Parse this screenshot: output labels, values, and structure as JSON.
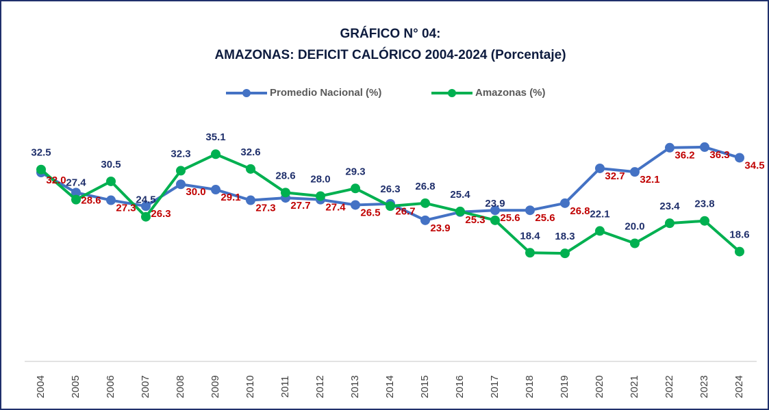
{
  "chart_data": {
    "type": "line",
    "title": "GRÁFICO N° 04:",
    "subtitle": "AMAZONAS: DEFICIT CALÓRICO 2004-2024 (Porcentaje)",
    "categories": [
      "2004",
      "2005",
      "2006",
      "2007",
      "2008",
      "2009",
      "2010",
      "2011",
      "2012",
      "2013",
      "2014",
      "2015",
      "2016",
      "2017",
      "2018",
      "2019",
      "2020",
      "2021",
      "2022",
      "2023",
      "2024"
    ],
    "series": [
      {
        "name": "Promedio Nacional (%)",
        "color": "#4472c4",
        "label_color": "#c00000",
        "values": [
          32.0,
          28.6,
          27.3,
          26.3,
          30.0,
          29.1,
          27.3,
          27.7,
          27.4,
          26.5,
          26.7,
          23.9,
          25.3,
          25.6,
          25.6,
          26.8,
          32.7,
          32.1,
          36.2,
          36.3,
          34.5
        ],
        "value_labels": [
          "32.0",
          "28.6",
          "27.3",
          "26.3",
          "30.0",
          "29.1",
          "27.3",
          "27.7",
          "27.4",
          "26.5",
          "26.7",
          "23.9",
          "25.3",
          "25.6",
          "25.6",
          "26.8",
          "32.7",
          "32.1",
          "36.2",
          "36.3",
          "34.5"
        ]
      },
      {
        "name": "Amazonas (%)",
        "color": "#00b050",
        "label_color": "#1f2f6b",
        "values": [
          32.5,
          27.4,
          30.5,
          24.5,
          32.3,
          35.1,
          32.6,
          28.6,
          28.0,
          29.3,
          26.3,
          26.8,
          25.4,
          23.9,
          18.4,
          18.3,
          22.1,
          20.0,
          23.4,
          23.8,
          18.6
        ],
        "value_labels": [
          "32.5",
          "27.4",
          "30.5",
          "24.5",
          "32.3",
          "35.1",
          "32.6",
          "28.6",
          "28.0",
          "29.3",
          "26.3",
          "26.8",
          "25.4",
          "23.9",
          "18.4",
          "18.3",
          "22.1",
          "20.0",
          "23.4",
          "23.8",
          "18.6"
        ]
      }
    ],
    "ylim": [
      0,
      40
    ]
  }
}
